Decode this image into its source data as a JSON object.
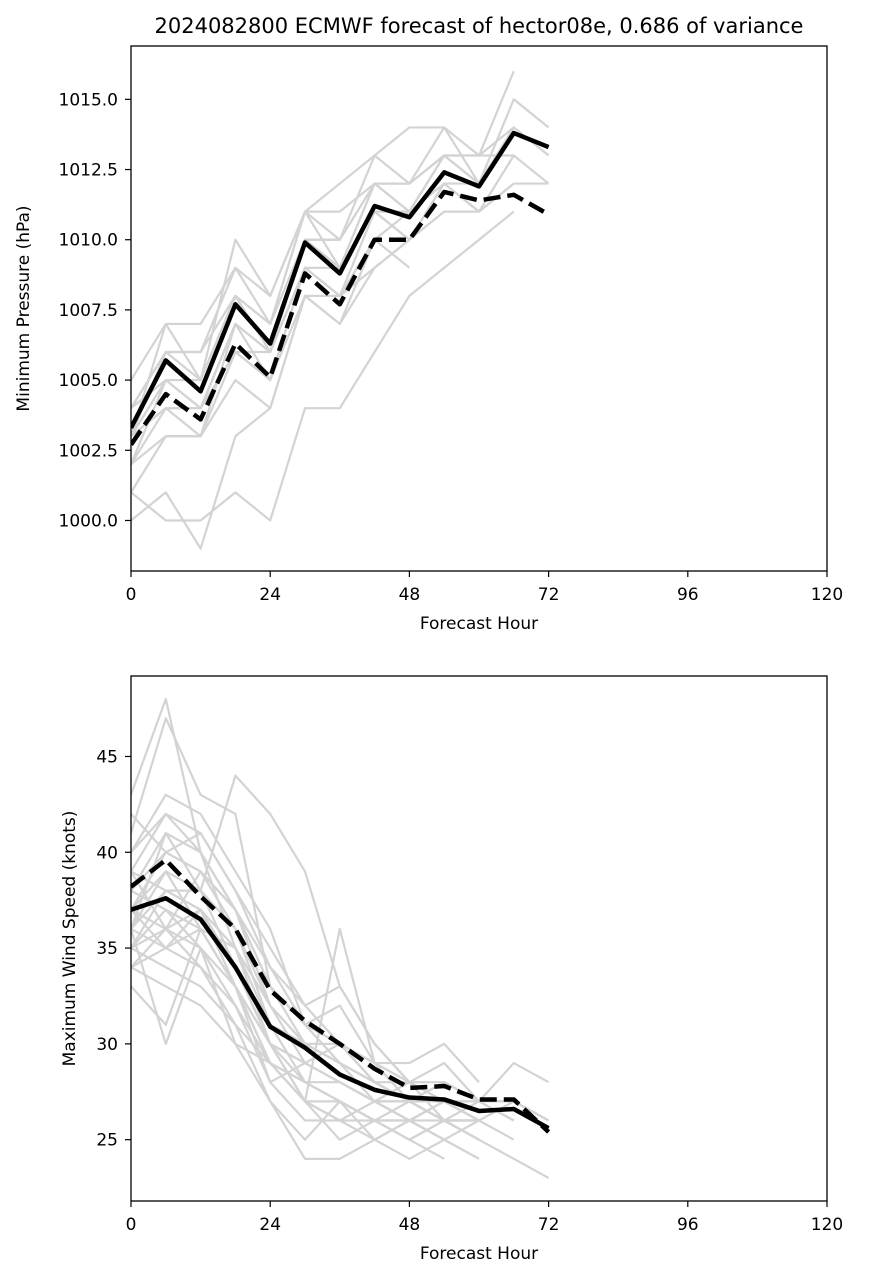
{
  "figure": {
    "title": "2024082800 ECMWF forecast of hector08e, 0.686 of variance"
  },
  "colors": {
    "members": "#d3d3d3",
    "main": "#000000",
    "frame": "#000000",
    "background": "#ffffff"
  },
  "chart_data": [
    {
      "type": "line",
      "ylabel": "Minimum Pressure (hPa)",
      "xlabel": "Forecast Hour",
      "xlim": [
        0,
        120
      ],
      "ylim": [
        998.2,
        1016.9
      ],
      "xticks": [
        0,
        24,
        48,
        72,
        96,
        120
      ],
      "yticks": [
        1000.0,
        1002.5,
        1005.0,
        1007.5,
        1010.0,
        1012.5,
        1015.0
      ],
      "ytick_labels": [
        "1000.0",
        "1002.5",
        "1005.0",
        "1007.5",
        "1010.0",
        "1012.5",
        "1015.0"
      ],
      "grid": false,
      "legend": "none",
      "x": [
        0,
        6,
        12,
        18,
        24,
        30,
        36,
        42,
        48,
        54,
        60,
        66,
        72
      ],
      "series": [
        {
          "style": "solid-thick",
          "values": [
            1003.3,
            1005.7,
            1004.6,
            1007.7,
            1006.3,
            1009.9,
            1008.8,
            1011.2,
            1010.8,
            1012.4,
            1011.9,
            1013.8,
            1013.3
          ]
        },
        {
          "style": "dashed-thick",
          "values": [
            1002.7,
            1004.5,
            1003.6,
            1006.3,
            1005.1,
            1008.8,
            1007.7,
            1010.0,
            1010.0,
            1011.7,
            1011.4,
            1011.6,
            1010.9
          ]
        }
      ],
      "members": [
        [
          1005,
          1007,
          1007,
          1009,
          1008,
          1011,
          1011,
          1012,
          1012,
          1013,
          1013,
          1016
        ],
        [
          1004,
          1006,
          1006,
          1009,
          1007,
          1010,
          1010,
          1012,
          1011,
          1013,
          1012,
          1015,
          1014
        ],
        [
          1003,
          1006,
          1005,
          1008,
          1007,
          1011,
          1010,
          1013,
          1012,
          1014,
          1012,
          1014
        ],
        [
          1004,
          1005,
          1005,
          1010,
          1008,
          1011,
          1012,
          1013,
          1014,
          1014,
          1013,
          1013,
          1012
        ],
        [
          1003,
          1005,
          1004,
          1007,
          1006,
          1010,
          1009,
          1011,
          1011,
          1012,
          1012,
          1014,
          1013
        ],
        [
          1002,
          1004,
          1004,
          1007,
          1005,
          1009,
          1008,
          1011,
          1010,
          1012,
          1011,
          1013
        ],
        [
          1003,
          1004,
          1003,
          1006,
          1006,
          1009,
          1008,
          1010,
          1009
        ],
        [
          1003,
          1007,
          1005,
          1008,
          1006,
          1010,
          1009,
          1012,
          1012,
          1013
        ],
        [
          1003,
          1004,
          1004,
          1006,
          1005,
          1008,
          1007,
          1010,
          1011
        ],
        [
          1002,
          1003,
          1003,
          1007,
          1006,
          1009,
          1009,
          1011,
          1010,
          1012,
          1011,
          1012
        ],
        [
          1001,
          1003,
          1003,
          1005,
          1004,
          1008,
          1007,
          1009,
          1010,
          1011,
          1011,
          1012,
          1012
        ],
        [
          1000,
          1001,
          999,
          1003,
          1004,
          1008,
          1008,
          1009,
          1010
        ],
        [
          1001,
          1000,
          1000,
          1001,
          1000,
          1004,
          1004,
          1006,
          1008,
          1009,
          1010,
          1011
        ],
        [
          1002,
          1005,
          1004,
          1007,
          1006,
          1010,
          1010,
          1012,
          1011,
          1013,
          1012
        ],
        [
          1004,
          1006,
          1006,
          1008,
          1007,
          1011,
          1009,
          1012,
          1012,
          1013,
          1013,
          1014
        ]
      ]
    },
    {
      "type": "line",
      "ylabel": "Maximum Wind Speed (knots)",
      "xlabel": "Forecast Hour",
      "xlim": [
        0,
        120
      ],
      "ylim": [
        21.8,
        49.2
      ],
      "xticks": [
        0,
        24,
        48,
        72,
        96,
        120
      ],
      "yticks": [
        25,
        30,
        35,
        40,
        45
      ],
      "ytick_labels": [
        "25",
        "30",
        "35",
        "40",
        "45"
      ],
      "grid": false,
      "legend": "none",
      "x": [
        0,
        6,
        12,
        18,
        24,
        30,
        36,
        42,
        48,
        54,
        60,
        66,
        72
      ],
      "series": [
        {
          "style": "solid-thick",
          "values": [
            37.0,
            37.6,
            36.5,
            34.0,
            30.9,
            29.8,
            28.4,
            27.6,
            27.2,
            27.1,
            26.5,
            26.6,
            25.6
          ]
        },
        {
          "style": "dashed-thick",
          "values": [
            38.2,
            39.6,
            37.7,
            36.0,
            32.8,
            31.2,
            30.0,
            28.7,
            27.7,
            27.8,
            27.1,
            27.1,
            25.4
          ]
        }
      ],
      "members": [
        [
          43,
          48,
          40,
          37,
          33,
          30,
          29,
          28,
          27,
          26,
          25
        ],
        [
          41,
          47,
          43,
          42,
          33,
          31,
          30,
          29,
          27,
          27,
          27,
          26
        ],
        [
          40,
          43,
          42,
          39,
          36,
          31,
          30,
          28,
          27,
          28,
          27,
          27,
          26
        ],
        [
          39,
          42,
          41,
          38,
          34,
          32,
          33,
          30,
          28,
          29,
          27,
          29,
          28
        ],
        [
          38,
          41,
          40,
          37,
          33,
          31,
          32,
          29,
          29,
          30,
          28
        ],
        [
          37,
          40,
          41,
          38,
          35,
          32,
          30,
          28,
          27,
          26,
          26,
          25
        ],
        [
          36,
          39,
          38,
          36,
          32,
          30,
          29,
          27,
          26,
          26,
          26
        ],
        [
          35,
          38,
          38,
          44,
          42,
          39,
          33,
          30,
          28,
          27,
          26
        ],
        [
          34,
          36,
          39,
          37,
          34,
          31,
          29,
          28,
          28,
          27,
          26,
          27
        ],
        [
          33,
          31,
          36,
          35,
          32,
          29,
          28,
          27,
          26,
          25,
          24
        ],
        [
          36,
          30,
          35,
          33,
          29,
          27,
          26,
          26,
          25,
          26,
          25,
          24,
          23
        ],
        [
          37,
          35,
          37,
          34,
          31,
          28,
          27,
          26,
          26,
          27
        ],
        [
          38,
          37,
          36,
          33,
          30,
          29,
          28,
          27,
          28,
          26,
          25
        ],
        [
          35,
          34,
          33,
          31,
          29,
          27,
          36,
          29,
          27,
          26
        ],
        [
          40,
          42,
          40,
          35,
          30,
          27,
          25,
          26,
          27,
          26,
          26
        ],
        [
          39,
          36,
          34,
          32,
          29,
          27,
          27,
          26,
          25,
          26,
          27,
          27,
          26
        ],
        [
          36,
          38,
          37,
          34,
          30,
          28,
          28,
          27,
          26,
          25,
          26
        ],
        [
          37,
          39,
          36,
          33,
          28,
          29,
          30,
          29,
          28,
          28,
          27,
          26
        ],
        [
          34,
          33,
          32,
          30,
          29,
          28,
          27,
          25,
          26,
          27
        ],
        [
          38,
          40,
          39,
          36,
          31,
          30,
          30,
          28,
          27,
          27,
          27
        ],
        [
          35,
          37,
          35,
          32,
          28,
          26,
          26,
          25,
          24,
          25
        ],
        [
          36,
          41,
          38,
          34,
          30,
          29,
          28,
          27,
          27,
          27,
          26
        ],
        [
          37,
          36,
          35,
          30,
          27,
          25,
          27,
          26,
          25,
          24
        ],
        [
          34,
          35,
          36,
          33,
          29,
          28,
          27,
          26,
          26,
          25,
          24
        ],
        [
          39,
          38,
          37,
          35,
          31,
          30,
          29,
          28,
          27,
          28,
          27,
          27
        ],
        [
          42,
          40,
          39,
          37,
          32,
          30,
          29,
          28,
          27,
          26
        ],
        [
          36,
          35,
          34,
          31,
          27,
          24,
          24,
          25,
          26,
          27,
          26
        ],
        [
          35,
          36,
          37,
          33,
          30,
          27,
          26,
          27,
          27,
          26,
          25
        ]
      ]
    }
  ]
}
